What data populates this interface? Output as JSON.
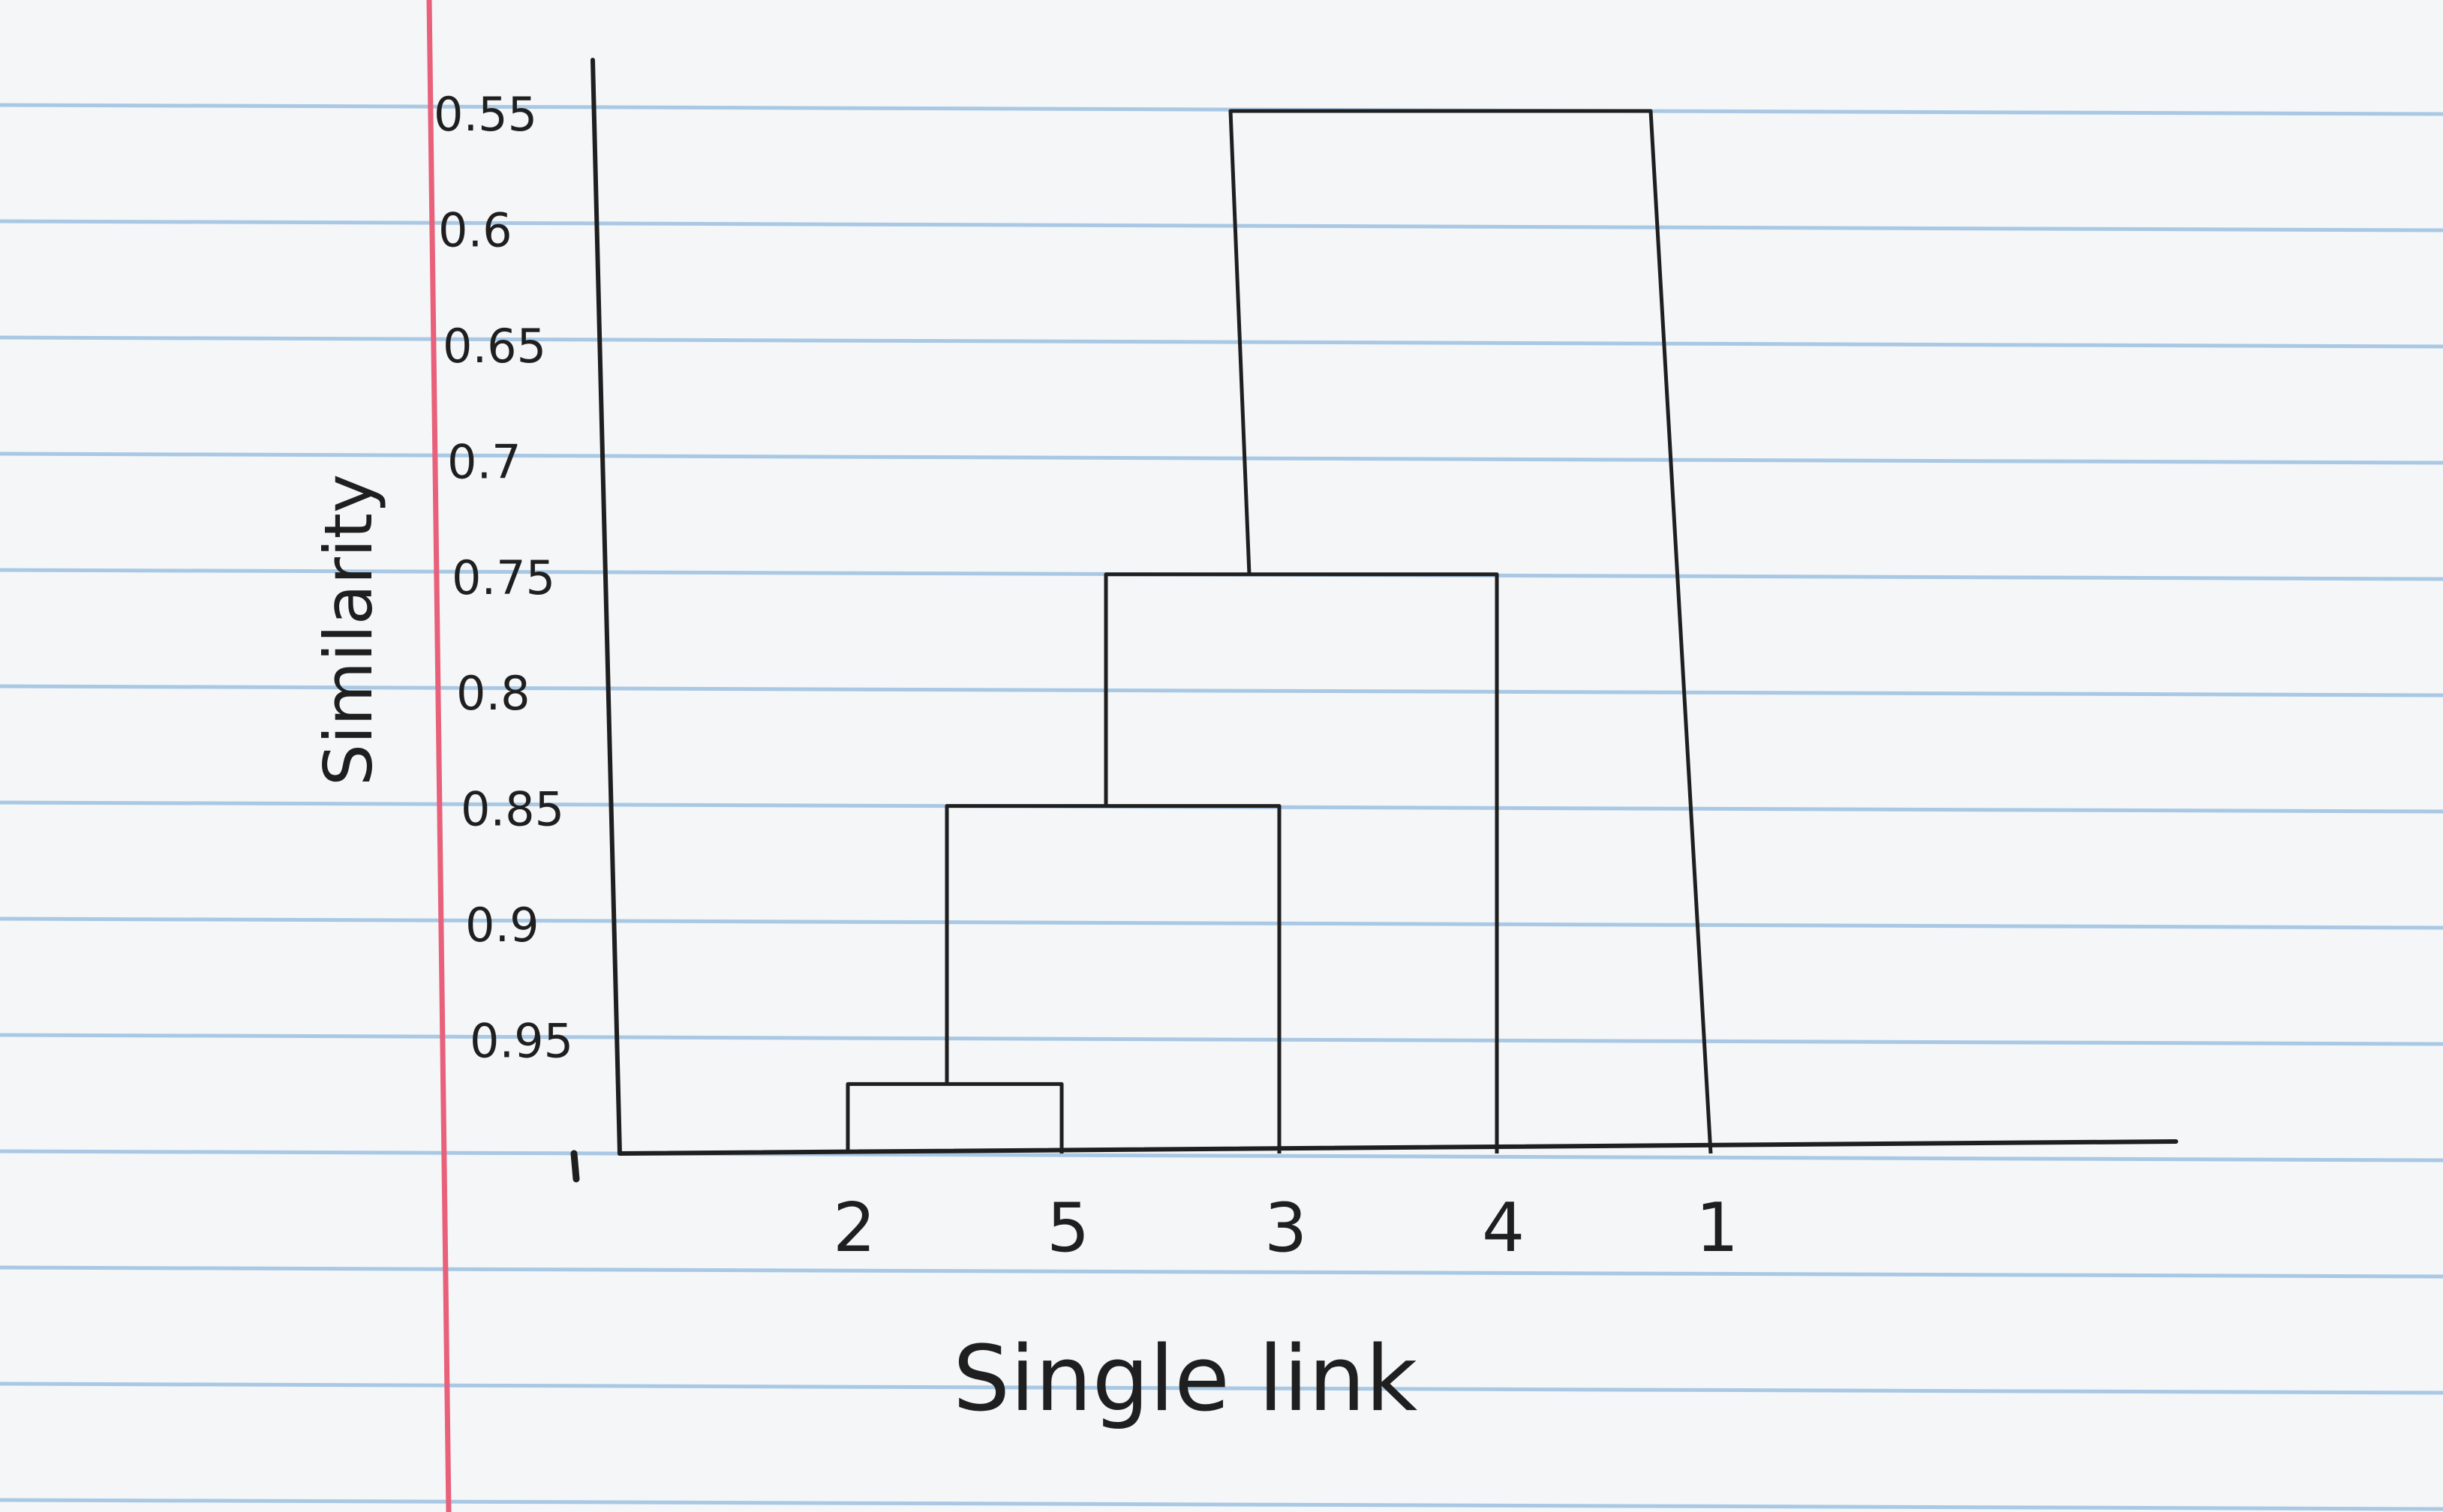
{
  "colors": {
    "paper": "#f4f6f8",
    "ruled_line": "#a9c8e4",
    "margin_line": "#e8607a",
    "ink": "#1f1f1f"
  },
  "chart_data": {
    "type": "dendrogram",
    "title": "Single link",
    "ylabel": "Similarity",
    "xlabel": "",
    "y_ticks": [
      "0.55",
      "0.6",
      "0.65",
      "0.7",
      "0.75",
      "0.8",
      "0.85",
      "0.9",
      "0.95"
    ],
    "y_tick_values": [
      0.55,
      0.6,
      0.65,
      0.7,
      0.75,
      0.8,
      0.85,
      0.9,
      0.95
    ],
    "ylim": [
      0.55,
      1.0
    ],
    "inverted_axis": true,
    "leaves": [
      "2",
      "5",
      "3",
      "4",
      "1"
    ],
    "merges": [
      {
        "left": "2",
        "right": "5",
        "similarity": 0.97
      },
      {
        "left": "{2,5}",
        "right": "3",
        "similarity": 0.85
      },
      {
        "left": "{2,5,3}",
        "right": "4",
        "similarity": 0.75
      },
      {
        "left": "{2,5,3,4}",
        "right": "1",
        "similarity": 0.55
      }
    ]
  }
}
